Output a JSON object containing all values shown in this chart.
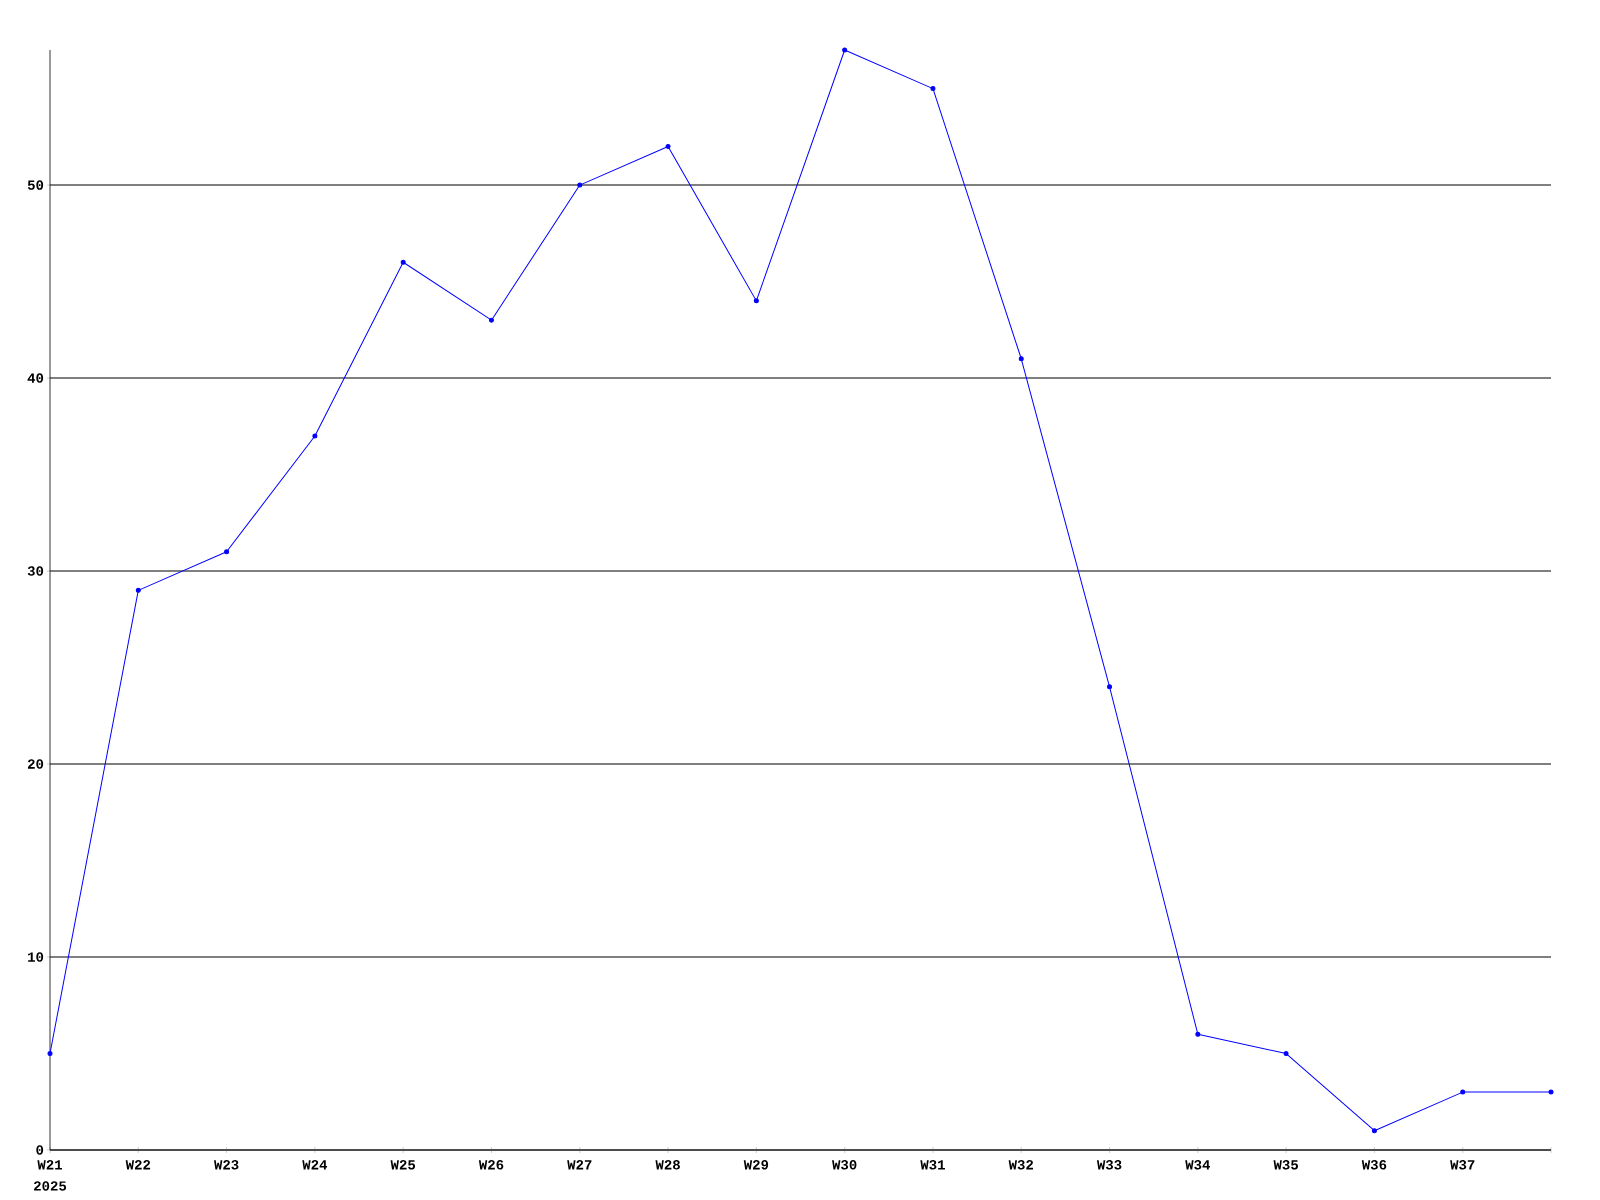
{
  "chart_data": {
    "type": "line",
    "categories": [
      "W21",
      "W22",
      "W23",
      "W24",
      "W25",
      "W26",
      "W27",
      "W28",
      "W29",
      "W30",
      "W31",
      "W32",
      "W33",
      "W34",
      "W35",
      "W36",
      "W37",
      null
    ],
    "values": [
      5,
      29,
      31,
      37,
      46,
      43,
      50,
      52,
      44,
      57,
      55,
      41,
      24,
      6,
      5,
      1,
      3,
      3
    ],
    "color": "#0000ff",
    "marker": "circle",
    "ylim": [
      0,
      57
    ],
    "yticks": [
      0,
      10,
      20,
      30,
      40,
      50
    ],
    "grid": "y",
    "annotations": [
      "2025"
    ]
  }
}
